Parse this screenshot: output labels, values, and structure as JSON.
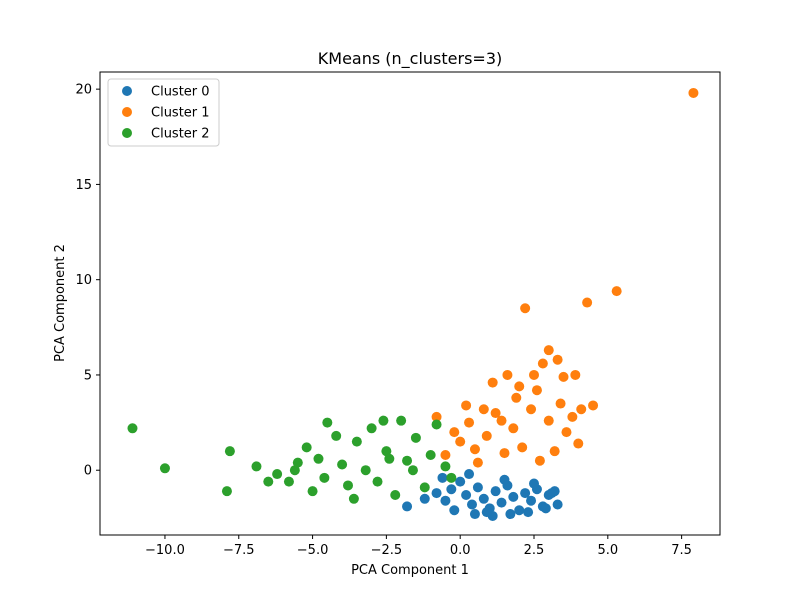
{
  "chart_data": {
    "type": "scatter",
    "title": "KMeans (n_clusters=3)",
    "xlabel": "PCA Component 1",
    "ylabel": "PCA Component 2",
    "xlim": [
      -12.2,
      8.8
    ],
    "ylim": [
      -3.4,
      20.9
    ],
    "xticks": [
      -10.0,
      -7.5,
      -5.0,
      -2.5,
      0.0,
      2.5,
      5.0,
      7.5
    ],
    "xtick_labels": [
      "−10.0",
      "−7.5",
      "−5.0",
      "−2.5",
      "0.0",
      "2.5",
      "5.0",
      "7.5"
    ],
    "yticks": [
      0,
      5,
      10,
      15,
      20
    ],
    "ytick_labels": [
      "0",
      "5",
      "10",
      "15",
      "20"
    ],
    "grid": false,
    "legend_position": "top-left",
    "series": [
      {
        "name": "Cluster 0",
        "color": "#1f77b4",
        "points": [
          [
            -0.8,
            -1.2
          ],
          [
            -0.5,
            -1.6
          ],
          [
            -0.3,
            -1.0
          ],
          [
            0.0,
            -0.6
          ],
          [
            0.2,
            -1.3
          ],
          [
            0.4,
            -1.8
          ],
          [
            0.6,
            -0.9
          ],
          [
            0.8,
            -1.5
          ],
          [
            1.0,
            -2.0
          ],
          [
            1.2,
            -1.1
          ],
          [
            1.4,
            -1.7
          ],
          [
            1.6,
            -0.8
          ],
          [
            1.8,
            -1.4
          ],
          [
            2.0,
            -2.1
          ],
          [
            2.2,
            -1.2
          ],
          [
            2.4,
            -1.6
          ],
          [
            2.6,
            -1.0
          ],
          [
            2.8,
            -1.9
          ],
          [
            3.0,
            -1.3
          ],
          [
            3.2,
            -1.1
          ],
          [
            3.3,
            -1.8
          ],
          [
            3.1,
            -1.2
          ],
          [
            -1.8,
            -1.9
          ],
          [
            -0.2,
            -2.1
          ],
          [
            0.5,
            -2.3
          ],
          [
            1.1,
            -2.4
          ],
          [
            1.7,
            -2.3
          ],
          [
            2.3,
            -2.2
          ],
          [
            2.9,
            -2.0
          ],
          [
            -0.6,
            -0.4
          ],
          [
            0.3,
            -0.2
          ],
          [
            1.5,
            -0.5
          ],
          [
            2.5,
            -0.7
          ],
          [
            -1.2,
            -1.5
          ],
          [
            0.9,
            -2.2
          ]
        ]
      },
      {
        "name": "Cluster 1",
        "color": "#ff7f0e",
        "points": [
          [
            7.9,
            19.8
          ],
          [
            5.3,
            9.4
          ],
          [
            4.3,
            8.8
          ],
          [
            2.2,
            8.5
          ],
          [
            3.0,
            6.3
          ],
          [
            3.3,
            5.8
          ],
          [
            2.8,
            5.6
          ],
          [
            3.9,
            5.0
          ],
          [
            4.5,
            3.4
          ],
          [
            4.1,
            3.2
          ],
          [
            4.0,
            1.4
          ],
          [
            3.6,
            2.0
          ],
          [
            3.5,
            4.9
          ],
          [
            2.5,
            5.0
          ],
          [
            1.6,
            5.0
          ],
          [
            1.1,
            4.6
          ],
          [
            0.2,
            3.4
          ],
          [
            -0.8,
            2.8
          ],
          [
            -0.5,
            0.8
          ],
          [
            0.0,
            1.5
          ],
          [
            0.3,
            2.5
          ],
          [
            0.6,
            0.4
          ],
          [
            0.9,
            1.8
          ],
          [
            1.2,
            3.0
          ],
          [
            1.5,
            0.9
          ],
          [
            1.8,
            2.2
          ],
          [
            2.1,
            1.2
          ],
          [
            2.4,
            3.2
          ],
          [
            2.7,
            0.5
          ],
          [
            3.0,
            2.6
          ],
          [
            3.2,
            1.0
          ],
          [
            3.4,
            3.5
          ],
          [
            2.6,
            4.2
          ],
          [
            1.9,
            3.8
          ],
          [
            0.8,
            3.2
          ],
          [
            -0.2,
            2.0
          ],
          [
            3.8,
            2.8
          ],
          [
            2.0,
            4.4
          ],
          [
            1.4,
            2.6
          ],
          [
            0.5,
            1.1
          ]
        ]
      },
      {
        "name": "Cluster 2",
        "color": "#2ca02c",
        "points": [
          [
            -11.1,
            2.2
          ],
          [
            -10.0,
            0.1
          ],
          [
            -7.8,
            1.0
          ],
          [
            -7.9,
            -1.1
          ],
          [
            -6.9,
            0.2
          ],
          [
            -6.5,
            -0.6
          ],
          [
            -6.2,
            -0.2
          ],
          [
            -5.8,
            -0.6
          ],
          [
            -5.5,
            0.4
          ],
          [
            -5.2,
            1.2
          ],
          [
            -5.0,
            -1.1
          ],
          [
            -4.8,
            0.6
          ],
          [
            -4.5,
            2.5
          ],
          [
            -4.2,
            1.8
          ],
          [
            -4.0,
            0.3
          ],
          [
            -3.8,
            -0.8
          ],
          [
            -3.5,
            1.5
          ],
          [
            -3.2,
            0.0
          ],
          [
            -3.0,
            2.2
          ],
          [
            -2.8,
            -0.6
          ],
          [
            -2.5,
            1.0
          ],
          [
            -2.2,
            -1.3
          ],
          [
            -2.0,
            2.6
          ],
          [
            -1.8,
            0.5
          ],
          [
            -1.5,
            1.7
          ],
          [
            -1.2,
            -0.9
          ],
          [
            -1.0,
            0.8
          ],
          [
            -0.8,
            2.4
          ],
          [
            -0.5,
            0.2
          ],
          [
            -0.3,
            -0.4
          ],
          [
            -3.6,
            -1.5
          ],
          [
            -2.6,
            2.6
          ],
          [
            -4.6,
            -0.4
          ],
          [
            -5.6,
            0.0
          ],
          [
            -1.6,
            0.0
          ],
          [
            -2.4,
            0.6
          ]
        ]
      }
    ]
  }
}
